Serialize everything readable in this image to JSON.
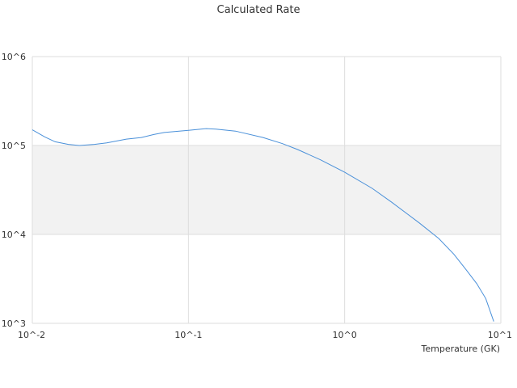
{
  "chart_data": {
    "type": "line",
    "title": "Calculated Rate",
    "xlabel": "Temperature (GK)",
    "ylabel": "",
    "x_scale": "log",
    "y_scale": "log",
    "xlim": [
      0.01,
      10
    ],
    "ylim": [
      1000,
      1000000
    ],
    "x_ticks": [
      0.01,
      0.1,
      1,
      10
    ],
    "x_tick_labels": [
      "10^-2",
      "10^-1",
      "10^0",
      "10^1"
    ],
    "y_ticks": [
      1000,
      10000,
      100000,
      1000000
    ],
    "y_tick_labels": [
      "10^3",
      "10^4",
      "10^5",
      "10^6"
    ],
    "band": {
      "from": 10000,
      "to": 100000,
      "color": "#f2f2f2"
    },
    "grid": true,
    "series": [
      {
        "color": "#4a90d9",
        "x": [
          0.01,
          0.012,
          0.014,
          0.017,
          0.02,
          0.025,
          0.03,
          0.04,
          0.05,
          0.06,
          0.07,
          0.08,
          0.1,
          0.12,
          0.13,
          0.15,
          0.2,
          0.3,
          0.4,
          0.5,
          0.7,
          1.0,
          1.5,
          2.0,
          3.0,
          4.0,
          5.0,
          6.0,
          7.0,
          8.0,
          9.0
        ],
        "y": [
          150000,
          125000,
          110000,
          103000,
          100000,
          103000,
          107000,
          118000,
          123000,
          133000,
          140000,
          143000,
          148000,
          153000,
          155000,
          153000,
          145000,
          123000,
          105000,
          90000,
          69000,
          50000,
          33000,
          23000,
          13500,
          9000,
          6000,
          4000,
          2800,
          1900,
          1050
        ]
      }
    ]
  }
}
